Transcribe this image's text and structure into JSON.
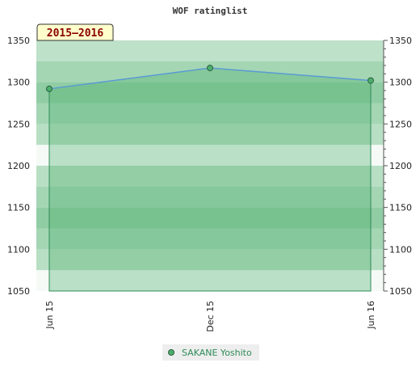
{
  "chart_data": {
    "type": "area",
    "title": "WOF ratinglist",
    "season_label": "2015–2016",
    "x": [
      "Jun 15",
      "Dec 15",
      "Jun 16"
    ],
    "series": [
      {
        "name": "SAKANE Yoshito",
        "values": [
          1292,
          1317,
          1302
        ]
      }
    ],
    "ylim": [
      1050,
      1350
    ],
    "yticks": [
      1050,
      1100,
      1150,
      1200,
      1250,
      1300,
      1350
    ],
    "y_axis_both_sides": true,
    "legend_position": "bottom-center",
    "colors": {
      "line": "#5b9bd5",
      "fill": "#4caf6e",
      "marker": "#2e8b57",
      "band_dark": "#7dc494",
      "band_light": "#eef7f1",
      "season_box": "#ffffcc",
      "legend_text": "#2e8b57"
    }
  }
}
